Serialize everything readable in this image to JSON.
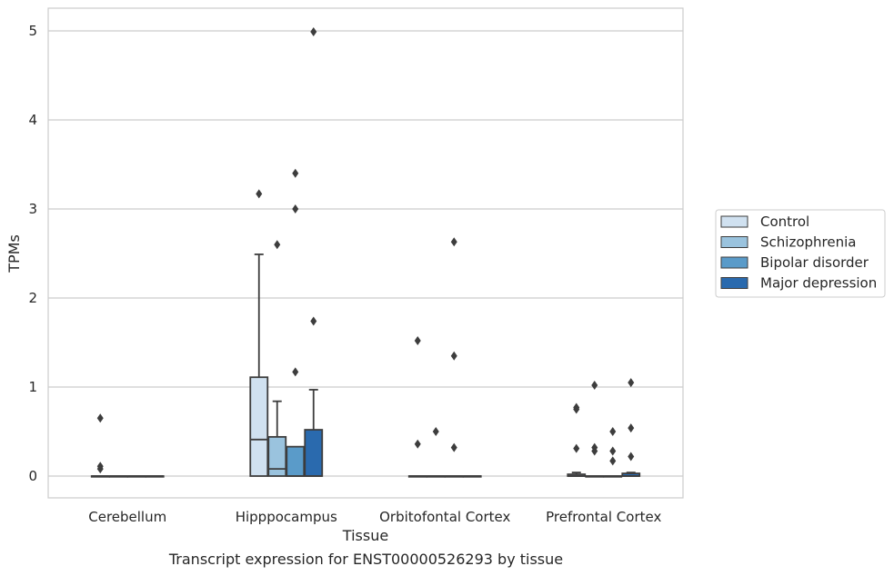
{
  "caption": "Transcript expression for ENST00000526293 by tissue",
  "chart_data": {
    "type": "box",
    "xlabel": "Tissue",
    "ylabel": "TPMs",
    "ylim": [
      -0.25,
      5.25
    ],
    "yticks": [
      0,
      1,
      2,
      3,
      4,
      5
    ],
    "grid": "horizontal",
    "legend_position": "right",
    "categories": [
      "Cerebellum",
      "Hipppocampus",
      "Orbitofontal Cortex",
      "Prefrontal Cortex"
    ],
    "series": [
      {
        "name": "Control",
        "color": "#d0e1f0",
        "boxes": [
          {
            "q1": 0,
            "median": 0,
            "q3": 0,
            "whisker_low": 0,
            "whisker_high": 0,
            "outliers": [
              0.65,
              0.11,
              0.08
            ]
          },
          {
            "q1": 0,
            "median": 0.41,
            "q3": 1.11,
            "whisker_low": 0,
            "whisker_high": 2.49,
            "outliers": [
              3.17
            ]
          },
          {
            "q1": 0,
            "median": 0,
            "q3": 0,
            "whisker_low": 0,
            "whisker_high": 0,
            "outliers": [
              1.52,
              0.36
            ]
          },
          {
            "q1": 0,
            "median": 0,
            "q3": 0.02,
            "whisker_low": 0,
            "whisker_high": 0.04,
            "outliers": [
              0.77,
              0.75,
              0.31
            ]
          }
        ]
      },
      {
        "name": "Schizophrenia",
        "color": "#9ac3de",
        "boxes": [
          {
            "q1": 0,
            "median": 0,
            "q3": 0,
            "whisker_low": 0,
            "whisker_high": 0,
            "outliers": []
          },
          {
            "q1": 0,
            "median": 0.08,
            "q3": 0.44,
            "whisker_low": 0,
            "whisker_high": 0.84,
            "outliers": [
              2.6
            ]
          },
          {
            "q1": 0,
            "median": 0,
            "q3": 0,
            "whisker_low": 0,
            "whisker_high": 0,
            "outliers": [
              0.5
            ]
          },
          {
            "q1": 0,
            "median": 0,
            "q3": 0,
            "whisker_low": 0,
            "whisker_high": 0,
            "outliers": [
              1.02,
              0.32,
              0.28
            ]
          }
        ]
      },
      {
        "name": "Bipolar disorder",
        "color": "#5a9bc9",
        "boxes": [
          {
            "q1": 0,
            "median": 0,
            "q3": 0,
            "whisker_low": 0,
            "whisker_high": 0,
            "outliers": []
          },
          {
            "q1": 0,
            "median": 0,
            "q3": 0.33,
            "whisker_low": 0,
            "whisker_high": 0.33,
            "outliers": [
              3.4,
              3.0,
              1.17
            ]
          },
          {
            "q1": 0,
            "median": 0,
            "q3": 0,
            "whisker_low": 0,
            "whisker_high": 0,
            "outliers": [
              2.63,
              1.35,
              0.32
            ]
          },
          {
            "q1": 0,
            "median": 0,
            "q3": 0,
            "whisker_low": 0,
            "whisker_high": 0,
            "outliers": [
              0.5,
              0.28,
              0.17
            ]
          }
        ]
      },
      {
        "name": "Major depression",
        "color": "#2a6aae",
        "boxes": [
          {
            "q1": 0,
            "median": 0,
            "q3": 0,
            "whisker_low": 0,
            "whisker_high": 0,
            "outliers": []
          },
          {
            "q1": 0,
            "median": 0,
            "q3": 0.52,
            "whisker_low": 0,
            "whisker_high": 0.97,
            "outliers": [
              4.99,
              1.74
            ]
          },
          {
            "q1": 0,
            "median": 0,
            "q3": 0,
            "whisker_low": 0,
            "whisker_high": 0,
            "outliers": []
          },
          {
            "q1": 0,
            "median": 0,
            "q3": 0.03,
            "whisker_low": 0,
            "whisker_high": 0.04,
            "outliers": [
              1.05,
              0.54,
              0.22
            ]
          }
        ]
      }
    ]
  }
}
